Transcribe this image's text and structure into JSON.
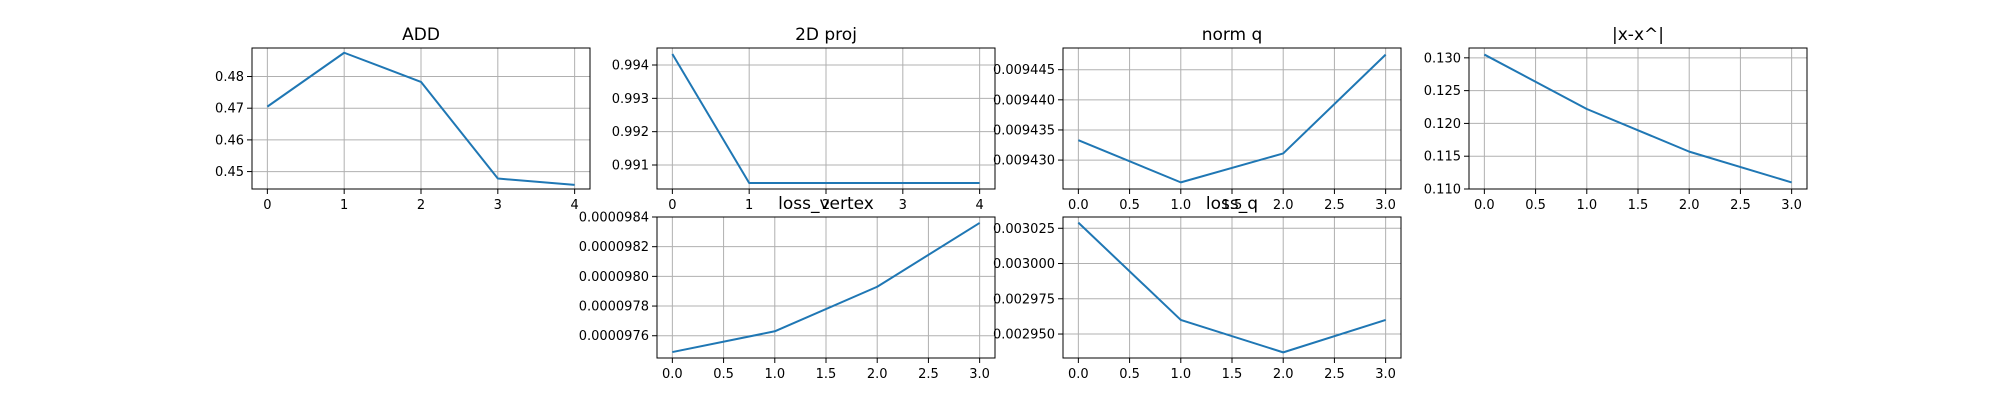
{
  "colors": {
    "line": "#1f77b4",
    "grid": "#b0b0b0",
    "axes": "#000000"
  },
  "chart_data": [
    {
      "id": "add",
      "type": "line",
      "title": "ADD",
      "grid": true,
      "x": [
        0,
        1,
        2,
        3,
        4
      ],
      "series": [
        {
          "values": [
            0.4705,
            0.4875,
            0.4783,
            0.4478,
            0.4458
          ]
        }
      ],
      "xlim": [
        -0.2,
        4.2
      ],
      "ylim": [
        0.4445,
        0.489
      ],
      "xticks": [
        0,
        1,
        2,
        3,
        4
      ],
      "xtick_labels": [
        "0",
        "1",
        "2",
        "3",
        "4"
      ],
      "yticks": [
        0.45,
        0.46,
        0.47,
        0.48
      ],
      "ytick_labels": [
        "0.45",
        "0.46",
        "0.47",
        "0.48"
      ]
    },
    {
      "id": "proj2d",
      "type": "line",
      "title": "2D proj",
      "grid": true,
      "x": [
        0,
        1,
        2,
        3,
        4
      ],
      "series": [
        {
          "values": [
            0.99433,
            0.99046,
            0.99046,
            0.99046,
            0.99046
          ]
        }
      ],
      "xlim": [
        -0.2,
        4.2
      ],
      "ylim": [
        0.99028,
        0.99451
      ],
      "xticks": [
        0,
        1,
        2,
        3,
        4
      ],
      "xtick_labels": [
        "0",
        "1",
        "2",
        "3",
        "4"
      ],
      "yticks": [
        0.991,
        0.992,
        0.993,
        0.994
      ],
      "ytick_labels": [
        "0.991",
        "0.992",
        "0.993",
        "0.994"
      ]
    },
    {
      "id": "normq",
      "type": "line",
      "title": "norm q",
      "grid": true,
      "x": [
        0,
        1,
        2,
        3
      ],
      "series": [
        {
          "values": [
            0.0094333,
            0.0094263,
            0.0094311,
            0.0094475
          ]
        }
      ],
      "xlim": [
        -0.15,
        3.15
      ],
      "ylim": [
        0.0094252,
        0.0094486
      ],
      "xticks": [
        0,
        0.5,
        1,
        1.5,
        2,
        2.5,
        3
      ],
      "xtick_labels": [
        "0.0",
        "0.5",
        "1.0",
        "1.5",
        "2.0",
        "2.5",
        "3.0"
      ],
      "yticks": [
        0.00943,
        0.009435,
        0.00944,
        0.009445
      ],
      "ytick_labels": [
        "0.009430",
        "0.009435",
        "0.009440",
        "0.009445"
      ]
    },
    {
      "id": "xx",
      "type": "line",
      "title": "|x-x^|",
      "grid": true,
      "x": [
        0,
        1,
        2,
        3
      ],
      "series": [
        {
          "values": [
            0.1305,
            0.1222,
            0.1157,
            0.111
          ]
        }
      ],
      "xlim": [
        -0.15,
        3.15
      ],
      "ylim": [
        0.11,
        0.1315
      ],
      "xticks": [
        0,
        0.5,
        1,
        1.5,
        2,
        2.5,
        3
      ],
      "xtick_labels": [
        "0.0",
        "0.5",
        "1.0",
        "1.5",
        "2.0",
        "2.5",
        "3.0"
      ],
      "yticks": [
        0.11,
        0.115,
        0.12,
        0.125,
        0.13
      ],
      "ytick_labels": [
        "0.110",
        "0.115",
        "0.120",
        "0.125",
        "0.130"
      ]
    },
    {
      "id": "lossv",
      "type": "line",
      "title": "loss_vertex",
      "grid": true,
      "x": [
        0,
        1,
        2,
        3
      ],
      "series": [
        {
          "values": [
            9.749e-05,
            9.763e-05,
            9.793e-05,
            9.836e-05
          ]
        }
      ],
      "xlim": [
        -0.15,
        3.15
      ],
      "ylim": [
        9.745e-05,
        9.84e-05
      ],
      "xticks": [
        0,
        0.5,
        1,
        1.5,
        2,
        2.5,
        3
      ],
      "xtick_labels": [
        "0.0",
        "0.5",
        "1.0",
        "1.5",
        "2.0",
        "2.5",
        "3.0"
      ],
      "yticks": [
        9.76e-05,
        9.78e-05,
        9.8e-05,
        9.82e-05,
        9.84e-05
      ],
      "ytick_labels": [
        "0.0000976",
        "0.0000978",
        "0.0000980",
        "0.0000982",
        "0.0000984"
      ]
    },
    {
      "id": "lossq",
      "type": "line",
      "title": "loss_q",
      "grid": true,
      "x": [
        0,
        1,
        2,
        3
      ],
      "series": [
        {
          "values": [
            0.003029,
            0.00296,
            0.002937,
            0.00296
          ]
        }
      ],
      "xlim": [
        -0.15,
        3.15
      ],
      "ylim": [
        0.002933,
        0.003033
      ],
      "xticks": [
        0,
        0.5,
        1,
        1.5,
        2,
        2.5,
        3
      ],
      "xtick_labels": [
        "0.0",
        "0.5",
        "1.0",
        "1.5",
        "2.0",
        "2.5",
        "3.0"
      ],
      "yticks": [
        0.00295,
        0.002975,
        0.003,
        0.003025
      ],
      "ytick_labels": [
        "0.002950",
        "0.002975",
        "0.003000",
        "0.003025"
      ]
    }
  ]
}
